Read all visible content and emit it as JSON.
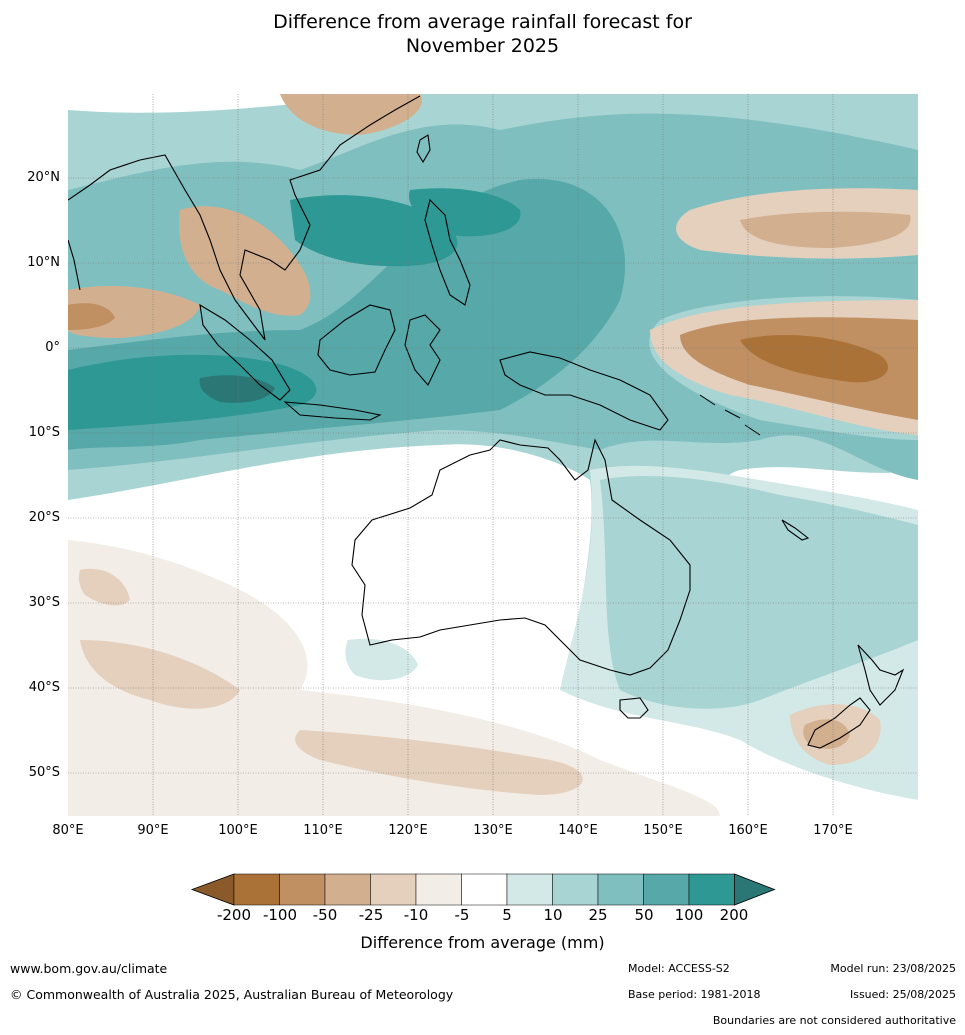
{
  "title_line1": "Difference from average rainfall forecast for",
  "title_line2": "November 2025",
  "map": {
    "lat_labels": [
      "20°N",
      "10°N",
      "0°",
      "10°S",
      "20°S",
      "30°S",
      "40°S",
      "50°S"
    ],
    "lon_labels": [
      "80°E",
      "90°E",
      "100°E",
      "110°E",
      "120°E",
      "130°E",
      "140°E",
      "150°E",
      "160°E",
      "170°E"
    ],
    "lon_range": [
      80,
      180
    ],
    "lat_range": [
      -55,
      30
    ]
  },
  "legend": {
    "title": "Difference from average (mm)",
    "ticks": [
      "-200",
      "-100",
      "-50",
      "-25",
      "-10",
      "-5",
      "5",
      "10",
      "25",
      "50",
      "100",
      "200"
    ],
    "colors": [
      "#8a5a2b",
      "#ab7238",
      "#c09063",
      "#d2b08f",
      "#e5d0bd",
      "#f2ede7",
      "#ffffff",
      "#d3e9e7",
      "#a8d4d3",
      "#80bfbf",
      "#56a9a8",
      "#2e9894",
      "#2a7775"
    ]
  },
  "footer": {
    "website": "www.bom.gov.au/climate",
    "copyright": "© Commonwealth of Australia 2025, Australian Bureau of Meteorology",
    "model": "Model: ACCESS-S2",
    "base_period": "Base period: 1981-2018",
    "model_run": "Model run: 23/08/2025",
    "issued": "Issued: 25/08/2025",
    "disclaimer": "Boundaries are not considered authoritative"
  }
}
